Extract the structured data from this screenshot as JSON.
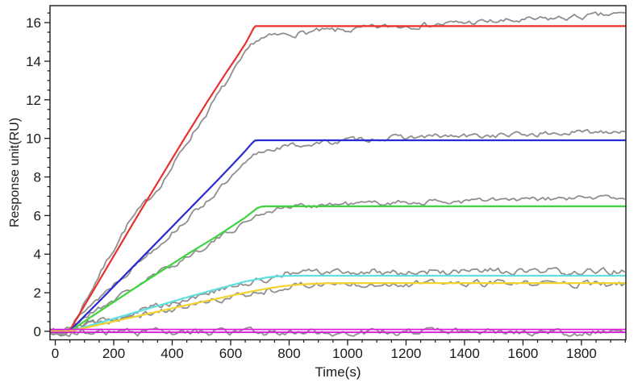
{
  "figure": {
    "background": "#ffffff",
    "title": ""
  },
  "chart_data": {
    "type": "line",
    "title": "",
    "xlabel": "Time(s)",
    "ylabel": "Response unit(RU)",
    "xlim": [
      -18,
      1952
    ],
    "ylim": [
      -0.44,
      16.88
    ],
    "grid": false,
    "legend": "none",
    "axis_color": "#1a1a1a",
    "x_major_ticks": [
      0,
      200,
      400,
      600,
      800,
      1000,
      1200,
      1400,
      1600,
      1800
    ],
    "x_tick_labels": [
      "0",
      "200",
      "400",
      "600",
      "800",
      "1000",
      "1200",
      "1400",
      "1600",
      "1800"
    ],
    "x_minor_step": 50,
    "y_major_ticks": [
      0,
      2,
      4,
      6,
      8,
      10,
      12,
      14,
      16
    ],
    "y_tick_labels": [
      "0",
      "2",
      "4",
      "6",
      "8",
      "10",
      "12",
      "14",
      "16"
    ],
    "y_minor_step": 0.5,
    "series": [
      {
        "name": "data-trace-1",
        "role": "data",
        "color": "#8f8f8f",
        "width": 1.8,
        "noise_amp": 0.11,
        "seed": 7,
        "points": [
          [
            -15,
            0
          ],
          [
            30,
            0
          ],
          [
            50,
            0.05
          ],
          [
            100,
            1.5
          ],
          [
            150,
            2.9
          ],
          [
            200,
            4.3
          ],
          [
            250,
            5.6
          ],
          [
            300,
            6.5
          ],
          [
            350,
            7.4
          ],
          [
            400,
            8.5
          ],
          [
            450,
            9.8
          ],
          [
            500,
            10.9
          ],
          [
            550,
            12.1
          ],
          [
            600,
            13.2
          ],
          [
            640,
            14.1
          ],
          [
            680,
            15.0
          ],
          [
            700,
            15.15
          ],
          [
            750,
            15.3
          ],
          [
            800,
            15.4
          ],
          [
            900,
            15.55
          ],
          [
            1000,
            15.6
          ],
          [
            1100,
            15.75
          ],
          [
            1200,
            15.85
          ],
          [
            1300,
            15.9
          ],
          [
            1400,
            16.0
          ],
          [
            1500,
            16.05
          ],
          [
            1600,
            16.1
          ],
          [
            1700,
            16.2
          ],
          [
            1800,
            16.3
          ],
          [
            1900,
            16.4
          ],
          [
            1950,
            16.45
          ]
        ]
      },
      {
        "name": "data-trace-2",
        "role": "data",
        "color": "#8f8f8f",
        "width": 1.8,
        "noise_amp": 0.1,
        "seed": 13,
        "points": [
          [
            -15,
            0
          ],
          [
            30,
            0
          ],
          [
            60,
            0.3
          ],
          [
            100,
            1.1
          ],
          [
            150,
            1.75
          ],
          [
            200,
            2.45
          ],
          [
            250,
            3.1
          ],
          [
            300,
            3.8
          ],
          [
            350,
            4.45
          ],
          [
            400,
            5.1
          ],
          [
            450,
            5.8
          ],
          [
            500,
            6.5
          ],
          [
            550,
            7.2
          ],
          [
            600,
            7.9
          ],
          [
            640,
            8.5
          ],
          [
            680,
            9.1
          ],
          [
            700,
            9.3
          ],
          [
            750,
            9.5
          ],
          [
            800,
            9.6
          ],
          [
            900,
            9.75
          ],
          [
            1000,
            9.9
          ],
          [
            1100,
            10.0
          ],
          [
            1200,
            10.05
          ],
          [
            1300,
            10.1
          ],
          [
            1400,
            10.1
          ],
          [
            1500,
            10.15
          ],
          [
            1600,
            10.2
          ],
          [
            1700,
            10.25
          ],
          [
            1800,
            10.3
          ],
          [
            1900,
            10.4
          ],
          [
            1950,
            10.4
          ]
        ]
      },
      {
        "name": "data-trace-3",
        "role": "data",
        "color": "#8f8f8f",
        "width": 1.8,
        "noise_amp": 0.1,
        "seed": 21,
        "points": [
          [
            -15,
            0
          ],
          [
            30,
            0
          ],
          [
            60,
            0.25
          ],
          [
            100,
            0.75
          ],
          [
            150,
            1.2
          ],
          [
            200,
            1.65
          ],
          [
            250,
            2.1
          ],
          [
            300,
            2.55
          ],
          [
            350,
            3.0
          ],
          [
            400,
            3.4
          ],
          [
            450,
            3.85
          ],
          [
            500,
            4.3
          ],
          [
            550,
            4.75
          ],
          [
            600,
            5.2
          ],
          [
            640,
            5.55
          ],
          [
            680,
            5.95
          ],
          [
            720,
            6.2
          ],
          [
            760,
            6.35
          ],
          [
            800,
            6.45
          ],
          [
            900,
            6.55
          ],
          [
            1000,
            6.6
          ],
          [
            1100,
            6.65
          ],
          [
            1200,
            6.7
          ],
          [
            1300,
            6.7
          ],
          [
            1400,
            6.75
          ],
          [
            1500,
            6.8
          ],
          [
            1600,
            6.8
          ],
          [
            1700,
            6.85
          ],
          [
            1800,
            6.9
          ],
          [
            1900,
            6.95
          ],
          [
            1950,
            6.95
          ]
        ]
      },
      {
        "name": "data-trace-4",
        "role": "data",
        "color": "#8f8f8f",
        "width": 1.8,
        "noise_amp": 0.13,
        "seed": 29,
        "points": [
          [
            -15,
            0
          ],
          [
            30,
            0
          ],
          [
            60,
            0.2
          ],
          [
            100,
            0.35
          ],
          [
            150,
            0.5
          ],
          [
            200,
            0.68
          ],
          [
            250,
            0.9
          ],
          [
            300,
            1.1
          ],
          [
            350,
            1.35
          ],
          [
            400,
            1.5
          ],
          [
            450,
            1.7
          ],
          [
            500,
            1.9
          ],
          [
            550,
            2.1
          ],
          [
            600,
            2.25
          ],
          [
            640,
            2.4
          ],
          [
            680,
            2.55
          ],
          [
            720,
            2.7
          ],
          [
            760,
            2.9
          ],
          [
            800,
            3.0
          ],
          [
            850,
            3.05
          ],
          [
            900,
            3.05
          ],
          [
            1000,
            3.05
          ],
          [
            1100,
            3.1
          ],
          [
            1200,
            3.05
          ],
          [
            1300,
            3.1
          ],
          [
            1400,
            3.05
          ],
          [
            1500,
            3.1
          ],
          [
            1600,
            3.05
          ],
          [
            1700,
            3.1
          ],
          [
            1800,
            3.05
          ],
          [
            1900,
            3.1
          ],
          [
            1950,
            3.1
          ]
        ]
      },
      {
        "name": "data-trace-5",
        "role": "data",
        "color": "#8f8f8f",
        "width": 1.8,
        "noise_amp": 0.12,
        "seed": 37,
        "points": [
          [
            -15,
            0
          ],
          [
            30,
            0
          ],
          [
            60,
            0.15
          ],
          [
            100,
            0.28
          ],
          [
            150,
            0.42
          ],
          [
            200,
            0.56
          ],
          [
            250,
            0.7
          ],
          [
            300,
            0.85
          ],
          [
            350,
            1.0
          ],
          [
            400,
            1.15
          ],
          [
            450,
            1.3
          ],
          [
            500,
            1.45
          ],
          [
            550,
            1.6
          ],
          [
            600,
            1.75
          ],
          [
            650,
            1.9
          ],
          [
            700,
            2.05
          ],
          [
            750,
            2.2
          ],
          [
            800,
            2.32
          ],
          [
            850,
            2.4
          ],
          [
            900,
            2.45
          ],
          [
            1000,
            2.45
          ],
          [
            1100,
            2.5
          ],
          [
            1200,
            2.45
          ],
          [
            1300,
            2.5
          ],
          [
            1400,
            2.45
          ],
          [
            1500,
            2.5
          ],
          [
            1600,
            2.45
          ],
          [
            1700,
            2.5
          ],
          [
            1800,
            2.45
          ],
          [
            1900,
            2.4
          ],
          [
            1950,
            2.4
          ]
        ]
      },
      {
        "name": "data-trace-6",
        "role": "data",
        "color": "#8f8f8f",
        "width": 1.8,
        "noise_amp": 0.13,
        "seed": 43,
        "points": [
          [
            -15,
            -0.05
          ],
          [
            400,
            -0.05
          ],
          [
            800,
            -0.05
          ],
          [
            1200,
            -0.05
          ],
          [
            1600,
            -0.05
          ],
          [
            1950,
            -0.05
          ]
        ]
      },
      {
        "name": "fit-red",
        "role": "fit",
        "color": "#e8312b",
        "width": 2.2,
        "plateau": 15.82,
        "points": [
          [
            -15,
            0
          ],
          [
            48,
            0
          ],
          [
            120,
            1.85
          ],
          [
            200,
            3.9
          ],
          [
            280,
            5.95
          ],
          [
            360,
            7.95
          ],
          [
            440,
            9.95
          ],
          [
            520,
            11.9
          ],
          [
            580,
            13.3
          ],
          [
            620,
            14.2
          ],
          [
            650,
            14.9
          ],
          [
            668,
            15.4
          ],
          [
            678,
            15.7
          ],
          [
            685,
            15.82
          ],
          [
            1950,
            15.82
          ]
        ]
      },
      {
        "name": "fit-blue",
        "role": "fit",
        "color": "#2a2ad2",
        "width": 2.2,
        "plateau": 9.9,
        "points": [
          [
            -15,
            0
          ],
          [
            48,
            0
          ],
          [
            150,
            1.55
          ],
          [
            250,
            3.1
          ],
          [
            350,
            4.65
          ],
          [
            450,
            6.2
          ],
          [
            550,
            7.75
          ],
          [
            610,
            8.7
          ],
          [
            650,
            9.35
          ],
          [
            670,
            9.7
          ],
          [
            682,
            9.88
          ],
          [
            692,
            9.9
          ],
          [
            1950,
            9.9
          ]
        ]
      },
      {
        "name": "fit-green",
        "role": "fit",
        "color": "#3fd43f",
        "width": 2.2,
        "plateau": 6.48,
        "points": [
          [
            -15,
            0
          ],
          [
            48,
            0
          ],
          [
            150,
            1.02
          ],
          [
            250,
            2.02
          ],
          [
            350,
            3.0
          ],
          [
            450,
            3.98
          ],
          [
            550,
            4.9
          ],
          [
            610,
            5.5
          ],
          [
            650,
            5.9
          ],
          [
            675,
            6.2
          ],
          [
            690,
            6.38
          ],
          [
            705,
            6.46
          ],
          [
            720,
            6.48
          ],
          [
            1950,
            6.48
          ]
        ]
      },
      {
        "name": "fit-cyan",
        "role": "fit",
        "color": "#5fe0e0",
        "width": 2.2,
        "plateau": 2.88,
        "points": [
          [
            -15,
            0
          ],
          [
            48,
            0
          ],
          [
            150,
            0.44
          ],
          [
            250,
            0.88
          ],
          [
            350,
            1.32
          ],
          [
            450,
            1.76
          ],
          [
            550,
            2.18
          ],
          [
            610,
            2.42
          ],
          [
            650,
            2.58
          ],
          [
            690,
            2.7
          ],
          [
            720,
            2.78
          ],
          [
            750,
            2.84
          ],
          [
            780,
            2.87
          ],
          [
            810,
            2.88
          ],
          [
            1950,
            2.88
          ]
        ]
      },
      {
        "name": "fit-yellow",
        "role": "fit",
        "color": "#f2d331",
        "width": 2.2,
        "plateau": 2.5,
        "points": [
          [
            -15,
            0
          ],
          [
            48,
            0
          ],
          [
            150,
            0.34
          ],
          [
            250,
            0.68
          ],
          [
            350,
            1.02
          ],
          [
            450,
            1.36
          ],
          [
            550,
            1.68
          ],
          [
            610,
            1.88
          ],
          [
            650,
            2.0
          ],
          [
            690,
            2.12
          ],
          [
            730,
            2.23
          ],
          [
            770,
            2.32
          ],
          [
            810,
            2.39
          ],
          [
            850,
            2.44
          ],
          [
            890,
            2.47
          ],
          [
            930,
            2.49
          ],
          [
            970,
            2.5
          ],
          [
            1950,
            2.5
          ]
        ]
      },
      {
        "name": "fit-magenta-upper",
        "role": "fit",
        "color": "#e01ce0",
        "width": 1.8,
        "plateau": 0.1,
        "points": [
          [
            -15,
            0.1
          ],
          [
            1950,
            0.1
          ]
        ]
      },
      {
        "name": "fit-magenta-lower",
        "role": "fit",
        "color": "#cf1ccf",
        "width": 1.8,
        "plateau": -0.05,
        "points": [
          [
            -15,
            -0.05
          ],
          [
            1950,
            -0.05
          ]
        ]
      }
    ]
  }
}
